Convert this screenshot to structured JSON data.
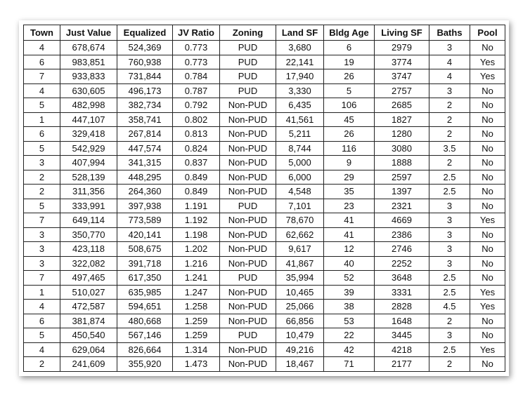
{
  "table": {
    "header": [
      "Town",
      "Just Value",
      "Equalized",
      "JV Ratio",
      "Zoning",
      "Land SF",
      "Bldg Age",
      "Living SF",
      "Baths",
      "Pool"
    ],
    "rows": [
      [
        "4",
        "678,674",
        "524,369",
        "0.773",
        "PUD",
        "3,680",
        "6",
        "2979",
        "3",
        "No"
      ],
      [
        "6",
        "983,851",
        "760,938",
        "0.773",
        "PUD",
        "22,141",
        "19",
        "3774",
        "4",
        "Yes"
      ],
      [
        "7",
        "933,833",
        "731,844",
        "0.784",
        "PUD",
        "17,940",
        "26",
        "3747",
        "4",
        "Yes"
      ],
      [
        "4",
        "630,605",
        "496,173",
        "0.787",
        "PUD",
        "3,330",
        "5",
        "2757",
        "3",
        "No"
      ],
      [
        "5",
        "482,998",
        "382,734",
        "0.792",
        "Non-PUD",
        "6,435",
        "106",
        "2685",
        "2",
        "No"
      ],
      [
        "1",
        "447,107",
        "358,741",
        "0.802",
        "Non-PUD",
        "41,561",
        "45",
        "1827",
        "2",
        "No"
      ],
      [
        "6",
        "329,418",
        "267,814",
        "0.813",
        "Non-PUD",
        "5,211",
        "26",
        "1280",
        "2",
        "No"
      ],
      [
        "5",
        "542,929",
        "447,574",
        "0.824",
        "Non-PUD",
        "8,744",
        "116",
        "3080",
        "3.5",
        "No"
      ],
      [
        "3",
        "407,994",
        "341,315",
        "0.837",
        "Non-PUD",
        "5,000",
        "9",
        "1888",
        "2",
        "No"
      ],
      [
        "2",
        "528,139",
        "448,295",
        "0.849",
        "Non-PUD",
        "6,000",
        "29",
        "2597",
        "2.5",
        "No"
      ],
      [
        "2",
        "311,356",
        "264,360",
        "0.849",
        "Non-PUD",
        "4,548",
        "35",
        "1397",
        "2.5",
        "No"
      ],
      [
        "5",
        "333,991",
        "397,938",
        "1.191",
        "PUD",
        "7,101",
        "23",
        "2321",
        "3",
        "No"
      ],
      [
        "7",
        "649,114",
        "773,589",
        "1.192",
        "Non-PUD",
        "78,670",
        "41",
        "4669",
        "3",
        "Yes"
      ],
      [
        "3",
        "350,770",
        "420,141",
        "1.198",
        "Non-PUD",
        "62,662",
        "41",
        "2386",
        "3",
        "No"
      ],
      [
        "3",
        "423,118",
        "508,675",
        "1.202",
        "Non-PUD",
        "9,617",
        "12",
        "2746",
        "3",
        "No"
      ],
      [
        "3",
        "322,082",
        "391,718",
        "1.216",
        "Non-PUD",
        "41,867",
        "40",
        "2252",
        "3",
        "No"
      ],
      [
        "7",
        "497,465",
        "617,350",
        "1.241",
        "PUD",
        "35,994",
        "52",
        "3648",
        "2.5",
        "No"
      ],
      [
        "1",
        "510,027",
        "635,985",
        "1.247",
        "Non-PUD",
        "10,465",
        "39",
        "3331",
        "2.5",
        "Yes"
      ],
      [
        "4",
        "472,587",
        "594,651",
        "1.258",
        "Non-PUD",
        "25,066",
        "38",
        "2828",
        "4.5",
        "Yes"
      ],
      [
        "6",
        "381,874",
        "480,668",
        "1.259",
        "Non-PUD",
        "66,856",
        "53",
        "1648",
        "2",
        "No"
      ],
      [
        "5",
        "450,540",
        "567,146",
        "1.259",
        "PUD",
        "10,479",
        "22",
        "3445",
        "3",
        "No"
      ],
      [
        "4",
        "629,064",
        "826,664",
        "1.314",
        "Non-PUD",
        "49,216",
        "42",
        "4218",
        "2.5",
        "Yes"
      ],
      [
        "2",
        "241,609",
        "355,920",
        "1.473",
        "Non-PUD",
        "18,467",
        "71",
        "2177",
        "2",
        "No"
      ]
    ]
  }
}
